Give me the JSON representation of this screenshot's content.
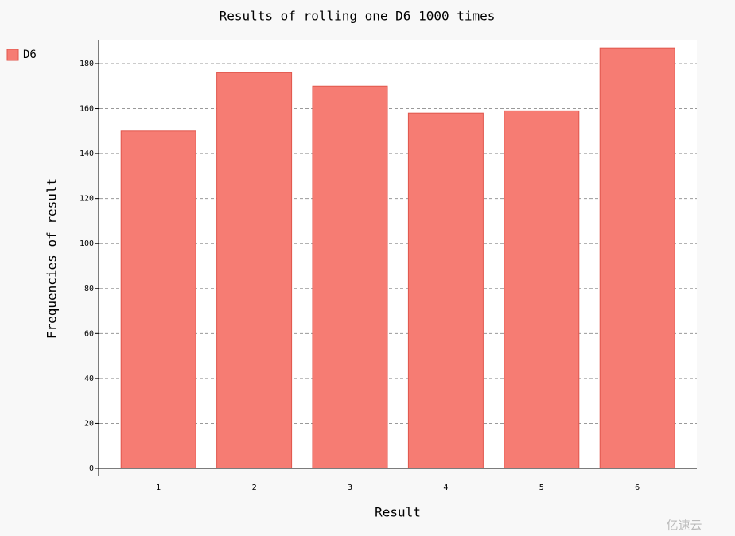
{
  "chart_data": {
    "type": "bar",
    "title": "Results of rolling one D6 1000 times",
    "x_label": "Result",
    "y_label": "Frequencies of result",
    "categories": [
      "1",
      "2",
      "3",
      "4",
      "5",
      "6"
    ],
    "series": [
      {
        "name": "D6",
        "color": "#f67c73",
        "values": [
          150,
          176,
          170,
          158,
          159,
          187
        ]
      }
    ],
    "ylim": [
      0,
      190.6
    ],
    "yticks": [
      0,
      20,
      40,
      60,
      80,
      100,
      120,
      140,
      160,
      180
    ],
    "grid": true,
    "legend": "top-left",
    "watermark": "亿速云"
  }
}
